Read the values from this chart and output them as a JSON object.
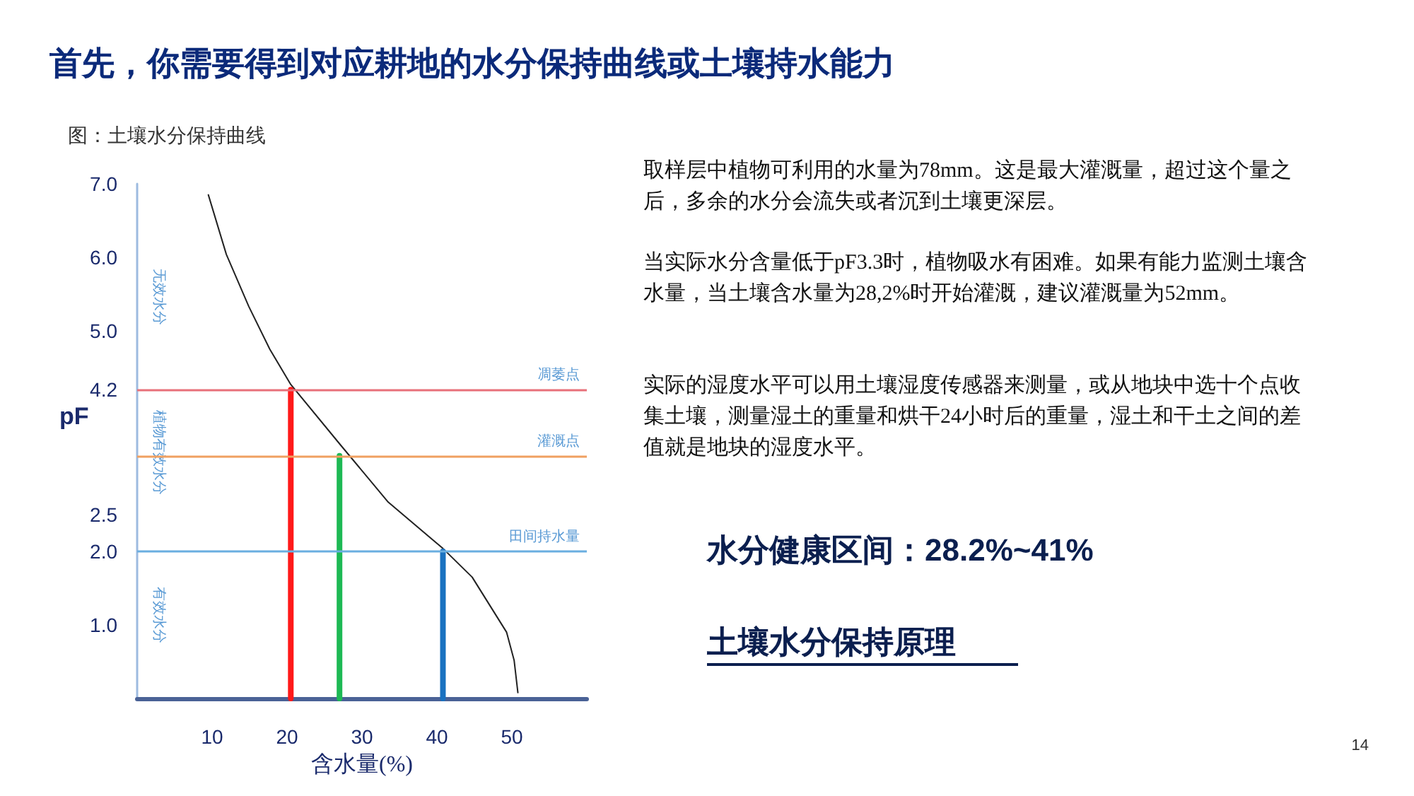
{
  "chart_data": {
    "type": "line",
    "title": "首先，你需要得到对应耕地的水分保持曲线或土壤持水能力",
    "subtitle": "图：土壤水分保持曲线",
    "xlabel": "含水量(%)",
    "ylabel": "pF",
    "xlim": [
      0,
      60
    ],
    "xticks": [
      10,
      20,
      30,
      40,
      50
    ],
    "ylim": [
      0,
      7
    ],
    "yticks": [
      {
        "value": 1,
        "label": "1.0"
      },
      {
        "value": 2,
        "label": "2.0"
      },
      {
        "value": 2.5,
        "label": "2.5"
      },
      4.2,
      {
        "value": 5,
        "label": "5.0"
      },
      {
        "value": 6,
        "label": "6.0"
      },
      {
        "value": 7,
        "label": "7.0"
      }
    ],
    "grid": false,
    "marker": "none",
    "line_style": "solid",
    "series": [
      {
        "color": "#222222",
        "x": [
          9.5,
          11.9,
          14.9,
          17.7,
          20.5,
          27.2,
          33.5,
          40.8,
          44.7,
          49.3,
          50.3,
          50.8
        ],
        "values": [
          6.85,
          6.04,
          5.33,
          4.75,
          4.27,
          3.44,
          2.67,
          2.04,
          1.65,
          0.9,
          0.52,
          0.08
        ]
      },
      {
        "color": "#ff1a1a",
        "x": [
          20.5,
          20.5
        ],
        "values": [
          0,
          4.2
        ]
      },
      {
        "color": "#1db954",
        "x": [
          27,
          27
        ],
        "values": [
          0,
          3.3
        ]
      },
      {
        "color": "#1a72c0",
        "x": [
          40.8,
          40.8
        ],
        "values": [
          0,
          2
        ]
      }
    ],
    "ref_lines": [
      {
        "axis": "y",
        "value": 4.2,
        "label": "凋萎点",
        "color": "#e8707a"
      },
      {
        "axis": "y",
        "value": 3.3,
        "label": "灌溉点",
        "color": "#f0a060"
      },
      {
        "axis": "y",
        "value": 2,
        "label": "田间持水量",
        "color": "#6aaee0"
      }
    ],
    "annotations": [
      "无效水分",
      "植物有效水分",
      "有效水分",
      "取样层中植物可利用的水量为78mm。这是最大灌溉量，超过这个量之后，多余的水分会流失或者沉到土壤更深层。",
      "当实际水分含量低于pF3.3时，植物吸水有困难。如果有能力监测土壤含水量，当土壤含水量为28,2%时开始灌溉，建议灌溉量为52mm。",
      "实际的湿度水平可以用土壤湿度传感器来测量，或从地块中选十个点收集土壤，测量湿土的重量和烘干24小时后的重量，湿土和干土之间的差值就是地块的湿度水平。",
      "水分健康区间：28.2%~41%",
      "土壤水分保持原理",
      "14"
    ]
  }
}
